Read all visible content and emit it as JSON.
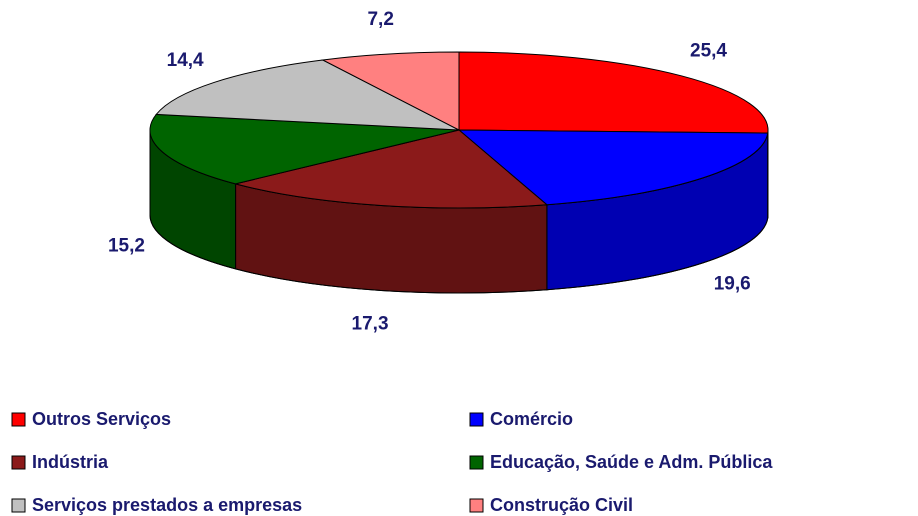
{
  "chart_data": {
    "type": "pie3d",
    "categories": [
      "Outros Serviços",
      "Comércio",
      "Indústria",
      "Educação, Saúde e Adm. Pública",
      "Serviços prestados a empresas",
      "Construção Civil"
    ],
    "values": [
      25.4,
      19.6,
      17.3,
      15.2,
      14.4,
      7.2
    ],
    "value_labels": [
      "25,4",
      "19,6",
      "17,3",
      "15,2",
      "14,4",
      "7,2"
    ],
    "colors": [
      "#ff0000",
      "#0000ff",
      "#8b1a1a",
      "#006400",
      "#c0c0c0",
      "#ff8080"
    ],
    "legend": "bottom"
  }
}
